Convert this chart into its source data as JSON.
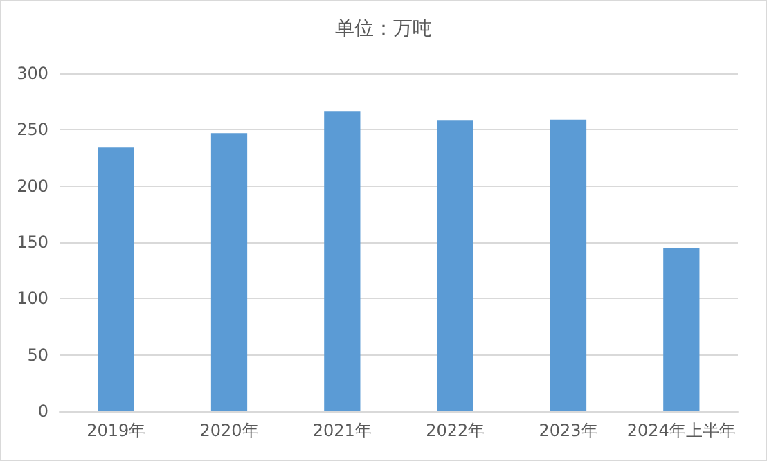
{
  "chart_data": {
    "type": "bar",
    "title": "单位：万吨",
    "categories": [
      "2019年",
      "2020年",
      "2021年",
      "2022年",
      "2023年",
      "2024年上半年"
    ],
    "values": [
      234,
      247,
      266,
      258,
      259,
      145
    ],
    "color": "#5b9bd5",
    "ylim": [
      0,
      300
    ],
    "yticks": [
      0,
      50,
      100,
      150,
      200,
      250,
      300
    ],
    "grid": "y"
  }
}
